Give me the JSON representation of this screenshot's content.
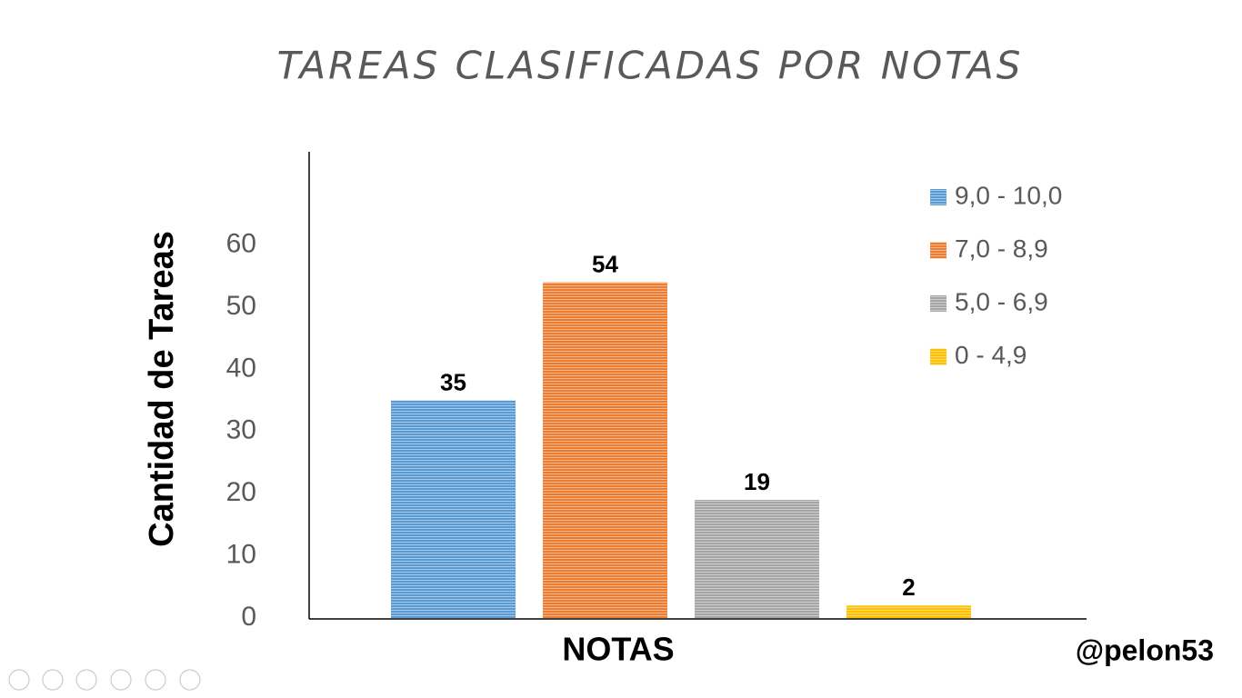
{
  "chart_data": {
    "type": "bar",
    "title": "TAREAS CLASIFICADAS POR NOTAS",
    "y_label": "Cantidad de Tareas",
    "x_label": "NOTAS",
    "series": [
      {
        "name": "9,0 - 10,0",
        "color": "#5b9bd5",
        "values": [
          35
        ]
      },
      {
        "name": "7,0 - 8,9",
        "color": "#ed7d31",
        "values": [
          54
        ]
      },
      {
        "name": "5,0 - 6,9",
        "color": "#a5a5a5",
        "values": [
          19
        ]
      },
      {
        "name": "0 - 4,9",
        "color": "#ffc000",
        "values": [
          2
        ]
      }
    ],
    "ylim": [
      0,
      75
    ],
    "yticks": [
      0,
      10,
      20,
      30,
      40,
      50,
      60
    ],
    "grid": false,
    "legend": "upper right"
  },
  "watermark": "@pelon53"
}
